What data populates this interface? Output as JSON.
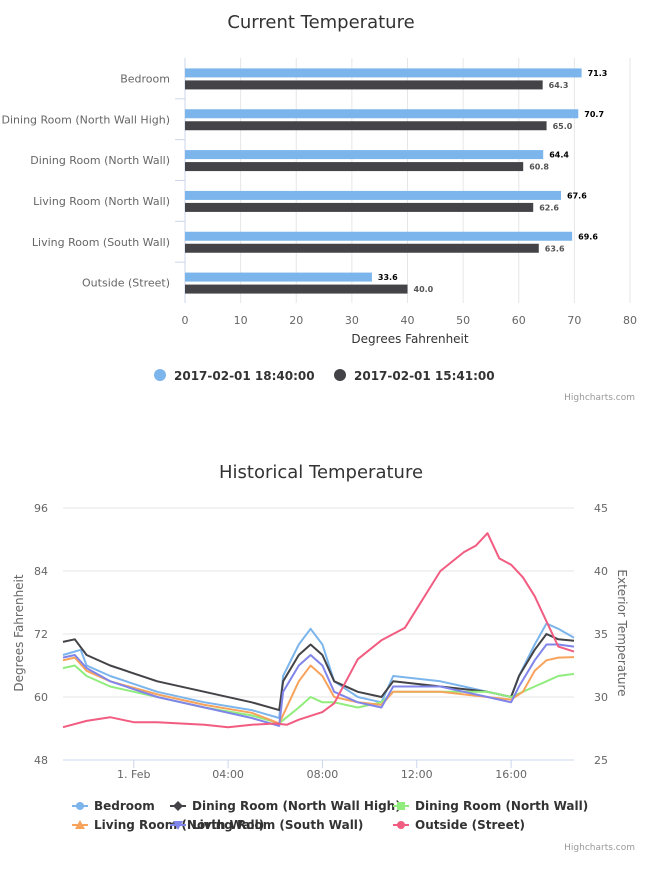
{
  "chart_data": [
    {
      "type": "bar",
      "orientation": "horizontal",
      "title": "Current Temperature",
      "xlabel": "Degrees Fahrenheit",
      "xlim": [
        0,
        80
      ],
      "ticks": [
        "0",
        "10",
        "20",
        "30",
        "40",
        "50",
        "60",
        "70",
        "80"
      ],
      "categories": [
        "Bedroom",
        "Dining Room (North Wall High)",
        "Dining Room (North Wall)",
        "Living Room (North Wall)",
        "Living Room (South Wall)",
        "Outside (Street)"
      ],
      "series": [
        {
          "name": "2017-02-01 18:40:00",
          "color": "#7cb5ec",
          "values": [
            71.3,
            70.7,
            64.4,
            67.6,
            69.6,
            33.6
          ],
          "labels": [
            "71.3",
            "70.7",
            "64.4",
            "67.6",
            "69.6",
            "33.6"
          ]
        },
        {
          "name": "2017-02-01 15:41:00",
          "color": "#434348",
          "values": [
            64.3,
            65.0,
            60.8,
            62.6,
            63.6,
            40.0
          ],
          "labels": [
            "64.3",
            "65.0",
            "60.8",
            "62.6",
            "63.6",
            "40.0"
          ]
        }
      ],
      "legend_position": "bottom",
      "credits": "Highcharts.com"
    },
    {
      "type": "line",
      "title": "Historical Temperature",
      "ylabel": "Degrees Fahrenheit",
      "ylabel_right": "Exterior Temperature",
      "ylim": [
        48,
        96
      ],
      "yticks": [
        "48",
        "60",
        "72",
        "84",
        "96"
      ],
      "ylim_right": [
        25,
        45
      ],
      "yticks_right": [
        "25",
        "30",
        "35",
        "40",
        "45"
      ],
      "x_start": "2017-01-31 21:00",
      "x_end": "2017-02-01 18:40",
      "xticks": [
        "1. Feb",
        "04:00",
        "08:00",
        "12:00",
        "16:00"
      ],
      "series": [
        {
          "name": "Bedroom",
          "color": "#7cb5ec",
          "marker": "circle",
          "points": [
            [
              "21:00",
              68
            ],
            [
              "21:45",
              69
            ],
            [
              "22:00",
              66
            ],
            [
              "23:00",
              64
            ],
            [
              "01:00",
              61
            ],
            [
              "03:00",
              59
            ],
            [
              "05:00",
              57.5
            ],
            [
              "06:10",
              56
            ],
            [
              "06:20",
              64
            ],
            [
              "07:00",
              70
            ],
            [
              "07:30",
              73
            ],
            [
              "08:00",
              70
            ],
            [
              "08:30",
              63
            ],
            [
              "09:30",
              60
            ],
            [
              "10:30",
              59
            ],
            [
              "11:00",
              64
            ],
            [
              "13:00",
              63
            ],
            [
              "14:00",
              62
            ],
            [
              "15:00",
              61
            ],
            [
              "16:00",
              60
            ],
            [
              "16:20",
              64
            ],
            [
              "17:00",
              70
            ],
            [
              "17:30",
              74
            ],
            [
              "18:00",
              73
            ],
            [
              "18:40",
              71.3
            ]
          ]
        },
        {
          "name": "Dining Room (North Wall High)",
          "color": "#434348",
          "marker": "diamond",
          "points": [
            [
              "21:00",
              70.5
            ],
            [
              "21:30",
              71
            ],
            [
              "22:00",
              68
            ],
            [
              "23:00",
              66
            ],
            [
              "01:00",
              63
            ],
            [
              "03:00",
              61
            ],
            [
              "05:00",
              59
            ],
            [
              "06:10",
              57.5
            ],
            [
              "06:20",
              63
            ],
            [
              "07:00",
              68
            ],
            [
              "07:30",
              70
            ],
            [
              "08:00",
              68
            ],
            [
              "08:30",
              63
            ],
            [
              "09:30",
              61
            ],
            [
              "10:30",
              60
            ],
            [
              "11:00",
              63
            ],
            [
              "13:00",
              62
            ],
            [
              "14:00",
              61.5
            ],
            [
              "15:00",
              61
            ],
            [
              "16:00",
              60
            ],
            [
              "16:20",
              64
            ],
            [
              "17:00",
              69
            ],
            [
              "17:30",
              72
            ],
            [
              "18:00",
              71
            ],
            [
              "18:40",
              70.7
            ]
          ]
        },
        {
          "name": "Dining Room (North Wall)",
          "color": "#90ed7d",
          "marker": "square",
          "points": [
            [
              "21:00",
              65.5
            ],
            [
              "21:30",
              66
            ],
            [
              "22:00",
              64
            ],
            [
              "23:00",
              62
            ],
            [
              "01:00",
              60
            ],
            [
              "03:00",
              58
            ],
            [
              "05:00",
              56.5
            ],
            [
              "06:10",
              55
            ],
            [
              "07:00",
              58
            ],
            [
              "07:30",
              60
            ],
            [
              "08:00",
              59
            ],
            [
              "08:30",
              59
            ],
            [
              "09:30",
              58
            ],
            [
              "10:30",
              59
            ],
            [
              "11:00",
              61
            ],
            [
              "13:00",
              61
            ],
            [
              "14:00",
              61
            ],
            [
              "15:00",
              61
            ],
            [
              "16:00",
              60
            ],
            [
              "16:30",
              61
            ],
            [
              "17:00",
              62
            ],
            [
              "17:30",
              63
            ],
            [
              "18:00",
              64
            ],
            [
              "18:40",
              64.4
            ]
          ]
        },
        {
          "name": "Living Room (North Wall)",
          "color": "#f7a35c",
          "marker": "triangle",
          "points": [
            [
              "21:00",
              67
            ],
            [
              "21:30",
              67.5
            ],
            [
              "22:00",
              65
            ],
            [
              "23:00",
              63
            ],
            [
              "01:00",
              60.5
            ],
            [
              "03:00",
              58.5
            ],
            [
              "05:00",
              57
            ],
            [
              "06:10",
              55
            ],
            [
              "07:00",
              63
            ],
            [
              "07:30",
              66
            ],
            [
              "08:00",
              64
            ],
            [
              "08:30",
              60
            ],
            [
              "09:30",
              59
            ],
            [
              "10:30",
              58.5
            ],
            [
              "11:00",
              61
            ],
            [
              "13:00",
              61
            ],
            [
              "14:00",
              60.5
            ],
            [
              "15:00",
              60
            ],
            [
              "16:00",
              59.5
            ],
            [
              "16:30",
              61
            ],
            [
              "17:00",
              65
            ],
            [
              "17:30",
              67
            ],
            [
              "18:00",
              67.5
            ],
            [
              "18:40",
              67.6
            ]
          ]
        },
        {
          "name": "Living Room (South Wall)",
          "color": "#8085e9",
          "marker": "triangle-down",
          "points": [
            [
              "21:00",
              67.5
            ],
            [
              "21:30",
              68
            ],
            [
              "22:00",
              65.5
            ],
            [
              "23:00",
              63
            ],
            [
              "01:00",
              60
            ],
            [
              "03:00",
              58
            ],
            [
              "05:00",
              56
            ],
            [
              "06:10",
              54.5
            ],
            [
              "06:20",
              61
            ],
            [
              "07:00",
              66
            ],
            [
              "07:30",
              68
            ],
            [
              "08:00",
              66
            ],
            [
              "08:30",
              61
            ],
            [
              "09:30",
              59
            ],
            [
              "10:30",
              58
            ],
            [
              "11:00",
              62
            ],
            [
              "13:00",
              62
            ],
            [
              "14:00",
              61
            ],
            [
              "15:00",
              60
            ],
            [
              "16:00",
              59
            ],
            [
              "16:20",
              62
            ],
            [
              "17:00",
              67
            ],
            [
              "17:30",
              70
            ],
            [
              "18:00",
              70
            ],
            [
              "18:40",
              69.6
            ]
          ]
        },
        {
          "name": "Outside (Street)",
          "color": "#f15c80",
          "marker": "circle",
          "axis": "right",
          "points": [
            [
              "21:00",
              27.6
            ],
            [
              "22:00",
              28.1
            ],
            [
              "23:00",
              28.4
            ],
            [
              "00:00",
              28
            ],
            [
              "01:00",
              28
            ],
            [
              "02:00",
              27.9
            ],
            [
              "03:00",
              27.8
            ],
            [
              "04:00",
              27.6
            ],
            [
              "05:00",
              27.8
            ],
            [
              "06:00",
              27.9
            ],
            [
              "06:30",
              27.8
            ],
            [
              "07:00",
              28.2
            ],
            [
              "08:00",
              28.8
            ],
            [
              "08:30",
              29.5
            ],
            [
              "09:30",
              33
            ],
            [
              "10:30",
              34.5
            ],
            [
              "11:30",
              35.5
            ],
            [
              "12:00",
              37
            ],
            [
              "12:30",
              38.5
            ],
            [
              "13:00",
              40
            ],
            [
              "14:00",
              41.5
            ],
            [
              "14:30",
              42
            ],
            [
              "15:00",
              43
            ],
            [
              "15:30",
              41
            ],
            [
              "16:00",
              40.5
            ],
            [
              "16:30",
              39.5
            ],
            [
              "17:00",
              38
            ],
            [
              "17:30",
              36
            ],
            [
              "18:00",
              34
            ],
            [
              "18:40",
              33.6
            ]
          ]
        }
      ],
      "legend_position": "bottom",
      "credits": "Highcharts.com"
    }
  ]
}
